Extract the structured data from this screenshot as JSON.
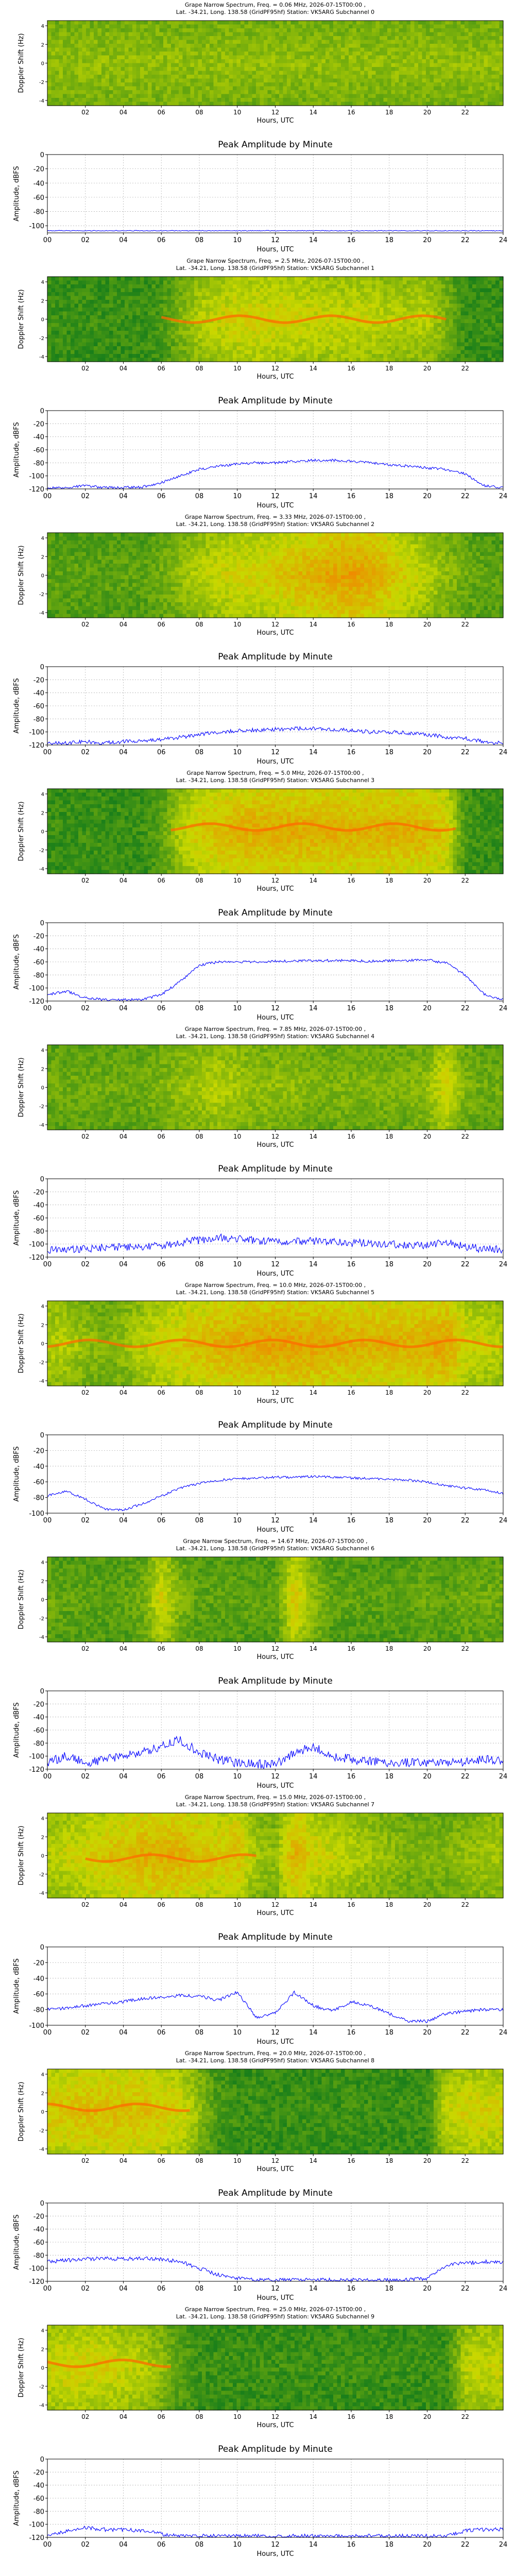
{
  "page": {
    "spectrogram_ylabel": "Doppler Shift (Hz)",
    "spectrogram_yticks": [
      "4",
      "2",
      "0",
      "-2",
      "-4"
    ],
    "spectrogram_xticks": [
      "02",
      "04",
      "06",
      "08",
      "10",
      "12",
      "14",
      "16",
      "18",
      "20",
      "22"
    ],
    "amplitude_title": "Peak Amplitude by Minute",
    "amplitude_ylabel": "Amplitude, dBFS",
    "xlabel": "Hours, UTC",
    "amplitude_xticks": [
      "00",
      "02",
      "04",
      "06",
      "08",
      "10",
      "12",
      "14",
      "16",
      "18",
      "20",
      "22",
      "24"
    ]
  },
  "colors": {
    "line": "#0000ff",
    "spectrogram_low": "#1a7f1a",
    "spectrogram_mid": "#c8d800",
    "spectrogram_high": "#ff6a00",
    "grid": "#b0b0b0"
  },
  "chart_data": [
    {
      "type": "heatmap",
      "subchannel": 0,
      "title_line1": "Grape Narrow Spectrum, Freq. = 0.06 MHz, 2026-07-15T00:00 ,",
      "title_line2": "Lat. -34.21, Long. 138.58 (GridPF95hf) Station: VK5ARG Subchannel 0",
      "xlabel": "Hours, UTC",
      "ylabel": "Doppler Shift (Hz)",
      "intensity_profile": [
        0.35,
        0.35,
        0.35,
        0.35,
        0.35,
        0.35,
        0.35,
        0.35,
        0.35,
        0.35,
        0.35,
        0.35,
        0.35,
        0.35,
        0.35,
        0.35,
        0.35,
        0.35,
        0.35,
        0.35,
        0.35,
        0.35,
        0.35,
        0.35,
        0.35
      ],
      "trace": null
    },
    {
      "type": "line",
      "title": "Peak Amplitude by Minute",
      "xlabel": "Hours, UTC",
      "ylabel": "Amplitude, dBFS",
      "ylim": [
        -110,
        0
      ],
      "yticks": [
        -100,
        -80,
        -60,
        -40,
        -20,
        0
      ],
      "xlim": [
        0,
        24
      ],
      "x": [
        0,
        1,
        2,
        3,
        4,
        5,
        6,
        7,
        8,
        9,
        10,
        11,
        12,
        13,
        14,
        15,
        16,
        17,
        18,
        19,
        20,
        21,
        22,
        23,
        24
      ],
      "y": [
        -107,
        -107,
        -107,
        -107,
        -107,
        -107,
        -107,
        -107,
        -107,
        -107,
        -107,
        -107,
        -107,
        -107,
        -107,
        -107,
        -107,
        -107,
        -107,
        -107,
        -107,
        -107,
        -107,
        -107,
        -107
      ],
      "noise": 0.5
    },
    {
      "type": "heatmap",
      "subchannel": 1,
      "title_line1": "Grape Narrow Spectrum, Freq. = 2.5 MHz, 2026-07-15T00:00 ,",
      "title_line2": "Lat. -34.21, Long. 138.58 (GridPF95hf) Station: VK5ARG Subchannel 1",
      "xlabel": "Hours, UTC",
      "ylabel": "Doppler Shift (Hz)",
      "intensity_profile": [
        0.1,
        0.1,
        0.1,
        0.1,
        0.1,
        0.1,
        0.15,
        0.3,
        0.45,
        0.5,
        0.55,
        0.55,
        0.55,
        0.55,
        0.5,
        0.5,
        0.5,
        0.5,
        0.45,
        0.45,
        0.45,
        0.3,
        0.1,
        0.1,
        0.1
      ],
      "trace": {
        "start": 6,
        "end": 21,
        "offset": 0.0
      }
    },
    {
      "type": "line",
      "title": "Peak Amplitude by Minute",
      "xlabel": "Hours, UTC",
      "ylabel": "Amplitude, dBFS",
      "ylim": [
        -120,
        0
      ],
      "yticks": [
        -120,
        -100,
        -80,
        -60,
        -40,
        -20,
        0
      ],
      "xlim": [
        0,
        24
      ],
      "x": [
        0,
        1,
        2,
        3,
        4,
        5,
        6,
        7,
        8,
        9,
        10,
        11,
        12,
        13,
        14,
        15,
        16,
        17,
        18,
        19,
        20,
        21,
        22,
        23,
        24
      ],
      "y": [
        -119,
        -118,
        -115,
        -118,
        -118,
        -117,
        -110,
        -100,
        -90,
        -85,
        -82,
        -80,
        -80,
        -78,
        -76,
        -76,
        -78,
        -80,
        -83,
        -85,
        -88,
        -90,
        -97,
        -115,
        -118
      ],
      "noise": 2
    },
    {
      "type": "heatmap",
      "subchannel": 2,
      "title_line1": "Grape Narrow Spectrum, Freq. = 3.33 MHz, 2026-07-15T00:00 ,",
      "title_line2": "Lat. -34.21, Long. 138.58 (GridPF95hf) Station: VK5ARG Subchannel 2",
      "xlabel": "Hours, UTC",
      "ylabel": "Doppler Shift (Hz)",
      "intensity_profile": [
        0.2,
        0.2,
        0.2,
        0.2,
        0.2,
        0.2,
        0.25,
        0.35,
        0.45,
        0.5,
        0.55,
        0.55,
        0.6,
        0.65,
        0.7,
        0.75,
        0.78,
        0.75,
        0.65,
        0.55,
        0.45,
        0.35,
        0.25,
        0.2,
        0.2
      ],
      "trace": null
    },
    {
      "type": "line",
      "title": "Peak Amplitude by Minute",
      "xlabel": "Hours, UTC",
      "ylabel": "Amplitude, dBFS",
      "ylim": [
        -120,
        0
      ],
      "yticks": [
        -120,
        -100,
        -80,
        -60,
        -40,
        -20,
        0
      ],
      "xlim": [
        0,
        24
      ],
      "x": [
        0,
        1,
        2,
        3,
        4,
        5,
        6,
        7,
        8,
        9,
        10,
        11,
        12,
        13,
        14,
        15,
        16,
        17,
        18,
        19,
        20,
        21,
        22,
        23,
        24
      ],
      "y": [
        -117,
        -117,
        -115,
        -117,
        -115,
        -114,
        -112,
        -108,
        -104,
        -100,
        -98,
        -97,
        -96,
        -95,
        -95,
        -96,
        -98,
        -100,
        -100,
        -102,
        -104,
        -108,
        -110,
        -115,
        -117
      ],
      "noise": 3
    },
    {
      "type": "heatmap",
      "subchannel": 3,
      "title_line1": "Grape Narrow Spectrum, Freq. = 5.0 MHz, 2026-07-15T00:00 ,",
      "title_line2": "Lat. -34.21, Long. 138.58 (GridPF95hf) Station: VK5ARG Subchannel 3",
      "xlabel": "Hours, UTC",
      "ylabel": "Doppler Shift (Hz)",
      "intensity_profile": [
        0.1,
        0.1,
        0.1,
        0.1,
        0.1,
        0.1,
        0.2,
        0.45,
        0.6,
        0.65,
        0.7,
        0.72,
        0.72,
        0.72,
        0.72,
        0.7,
        0.7,
        0.7,
        0.7,
        0.7,
        0.68,
        0.6,
        0.15,
        0.1,
        0.1
      ],
      "trace": {
        "start": 6.5,
        "end": 21.5,
        "offset": 0.5
      }
    },
    {
      "type": "line",
      "title": "Peak Amplitude by Minute",
      "xlabel": "Hours, UTC",
      "ylabel": "Amplitude, dBFS",
      "ylim": [
        -120,
        0
      ],
      "yticks": [
        -120,
        -100,
        -80,
        -60,
        -40,
        -20,
        0
      ],
      "xlim": [
        0,
        24
      ],
      "x": [
        0,
        1,
        2,
        3,
        4,
        5,
        6,
        7,
        8,
        9,
        10,
        11,
        12,
        13,
        14,
        15,
        16,
        17,
        18,
        19,
        20,
        21,
        22,
        23,
        24
      ],
      "y": [
        -110,
        -105,
        -115,
        -118,
        -118,
        -118,
        -110,
        -90,
        -65,
        -60,
        -60,
        -60,
        -59,
        -59,
        -58,
        -58,
        -58,
        -59,
        -58,
        -58,
        -57,
        -62,
        -80,
        -110,
        -118
      ],
      "noise": 2
    },
    {
      "type": "heatmap",
      "subchannel": 4,
      "title_line1": "Grape Narrow Spectrum, Freq. = 7.85 MHz, 2026-07-15T00:00 ,",
      "title_line2": "Lat. -34.21, Long. 138.58 (GridPF95hf) Station: VK5ARG Subchannel 4",
      "xlabel": "Hours, UTC",
      "ylabel": "Doppler Shift (Hz)",
      "intensity_profile": [
        0.25,
        0.25,
        0.25,
        0.25,
        0.25,
        0.25,
        0.3,
        0.35,
        0.4,
        0.45,
        0.4,
        0.35,
        0.35,
        0.35,
        0.3,
        0.3,
        0.3,
        0.3,
        0.3,
        0.3,
        0.35,
        0.55,
        0.3,
        0.25,
        0.25
      ],
      "trace": null
    },
    {
      "type": "line",
      "title": "Peak Amplitude by Minute",
      "xlabel": "Hours, UTC",
      "ylabel": "Amplitude, dBFS",
      "ylim": [
        -120,
        0
      ],
      "yticks": [
        -120,
        -100,
        -80,
        -60,
        -40,
        -20,
        0
      ],
      "xlim": [
        0,
        24
      ],
      "x": [
        0,
        1,
        2,
        3,
        4,
        5,
        6,
        7,
        8,
        9,
        10,
        11,
        12,
        13,
        14,
        15,
        16,
        17,
        18,
        19,
        20,
        21,
        22,
        23,
        24
      ],
      "y": [
        -110,
        -108,
        -108,
        -105,
        -105,
        -104,
        -102,
        -98,
        -94,
        -90,
        -92,
        -95,
        -96,
        -95,
        -96,
        -97,
        -98,
        -98,
        -100,
        -102,
        -102,
        -98,
        -104,
        -108,
        -108
      ],
      "noise": 6
    },
    {
      "type": "heatmap",
      "subchannel": 5,
      "title_line1": "Grape Narrow Spectrum, Freq. = 10.0 MHz, 2026-07-15T00:00 ,",
      "title_line2": "Lat. -34.21, Long. 138.58 (GridPF95hf) Station: VK5ARG Subchannel 5",
      "xlabel": "Hours, UTC",
      "ylabel": "Doppler Shift (Hz)",
      "intensity_profile": [
        0.45,
        0.45,
        0.35,
        0.3,
        0.35,
        0.45,
        0.55,
        0.6,
        0.65,
        0.7,
        0.72,
        0.75,
        0.75,
        0.75,
        0.75,
        0.72,
        0.7,
        0.7,
        0.7,
        0.7,
        0.72,
        0.75,
        0.55,
        0.5,
        0.45
      ],
      "trace": {
        "start": 0,
        "end": 24,
        "offset": 0.0
      }
    },
    {
      "type": "line",
      "title": "Peak Amplitude by Minute",
      "xlabel": "Hours, UTC",
      "ylabel": "Amplitude, dBFS",
      "ylim": [
        -100,
        0
      ],
      "yticks": [
        -100,
        -80,
        -60,
        -40,
        -20,
        0
      ],
      "xlim": [
        0,
        24
      ],
      "x": [
        0,
        1,
        2,
        3,
        4,
        5,
        6,
        7,
        8,
        9,
        10,
        11,
        12,
        13,
        14,
        15,
        16,
        17,
        18,
        19,
        20,
        21,
        22,
        23,
        24
      ],
      "y": [
        -78,
        -72,
        -82,
        -95,
        -96,
        -88,
        -78,
        -68,
        -62,
        -58,
        -56,
        -55,
        -54,
        -54,
        -53,
        -54,
        -55,
        -56,
        -57,
        -58,
        -60,
        -65,
        -68,
        -70,
        -75
      ],
      "noise": 1.5
    },
    {
      "type": "heatmap",
      "subchannel": 6,
      "title_line1": "Grape Narrow Spectrum, Freq. = 14.67 MHz, 2026-07-15T00:00 ,",
      "title_line2": "Lat. -34.21, Long. 138.58 (GridPF95hf) Station: VK5ARG Subchannel 6",
      "xlabel": "Hours, UTC",
      "ylabel": "Doppler Shift (Hz)",
      "intensity_profile": [
        0.25,
        0.2,
        0.2,
        0.2,
        0.2,
        0.25,
        0.55,
        0.3,
        0.2,
        0.2,
        0.2,
        0.2,
        0.2,
        0.6,
        0.35,
        0.2,
        0.2,
        0.2,
        0.2,
        0.2,
        0.25,
        0.2,
        0.25,
        0.25,
        0.25
      ],
      "trace": null
    },
    {
      "type": "line",
      "title": "Peak Amplitude by Minute",
      "xlabel": "Hours, UTC",
      "ylabel": "Amplitude, dBFS",
      "ylim": [
        -120,
        0
      ],
      "yticks": [
        -120,
        -100,
        -80,
        -60,
        -40,
        -20,
        0
      ],
      "xlim": [
        0,
        24
      ],
      "x": [
        0,
        1,
        2,
        3,
        4,
        5,
        6,
        7,
        8,
        9,
        10,
        11,
        12,
        13,
        14,
        15,
        16,
        17,
        18,
        19,
        20,
        21,
        22,
        23,
        24
      ],
      "y": [
        -110,
        -100,
        -110,
        -105,
        -100,
        -95,
        -85,
        -75,
        -95,
        -105,
        -110,
        -112,
        -113,
        -95,
        -85,
        -100,
        -105,
        -108,
        -110,
        -110,
        -110,
        -112,
        -108,
        -105,
        -108
      ],
      "noise": 7
    },
    {
      "type": "heatmap",
      "subchannel": 7,
      "title_line1": "Grape Narrow Spectrum, Freq. = 15.0 MHz, 2026-07-15T00:00 ,",
      "title_line2": "Lat. -34.21, Long. 138.58 (GridPF95hf) Station: VK5ARG Subchannel 7",
      "xlabel": "Hours, UTC",
      "ylabel": "Doppler Shift (Hz)",
      "intensity_profile": [
        0.45,
        0.5,
        0.55,
        0.6,
        0.65,
        0.7,
        0.7,
        0.7,
        0.65,
        0.6,
        0.65,
        0.4,
        0.35,
        0.7,
        0.55,
        0.5,
        0.45,
        0.4,
        0.35,
        0.3,
        0.3,
        0.3,
        0.35,
        0.4,
        0.4
      ],
      "trace": {
        "start": 2,
        "end": 11,
        "offset": -0.3
      }
    },
    {
      "type": "line",
      "title": "Peak Amplitude by Minute",
      "xlabel": "Hours, UTC",
      "ylabel": "Amplitude, dBFS",
      "ylim": [
        -100,
        0
      ],
      "yticks": [
        -100,
        -80,
        -60,
        -40,
        -20,
        0
      ],
      "xlim": [
        0,
        24
      ],
      "x": [
        0,
        1,
        2,
        3,
        4,
        5,
        6,
        7,
        8,
        9,
        10,
        11,
        12,
        13,
        14,
        15,
        16,
        17,
        18,
        19,
        20,
        21,
        22,
        23,
        24
      ],
      "y": [
        -80,
        -78,
        -75,
        -72,
        -70,
        -66,
        -64,
        -62,
        -63,
        -68,
        -58,
        -90,
        -85,
        -58,
        -75,
        -82,
        -70,
        -75,
        -85,
        -95,
        -95,
        -85,
        -82,
        -80,
        -80
      ],
      "noise": 2
    },
    {
      "type": "heatmap",
      "subchannel": 8,
      "title_line1": "Grape Narrow Spectrum, Freq. = 20.0 MHz, 2026-07-15T00:00 ,",
      "title_line2": "Lat. -34.21, Long. 138.58 (GridPF95hf) Station: VK5ARG Subchannel 8",
      "xlabel": "Hours, UTC",
      "ylabel": "Doppler Shift (Hz)",
      "intensity_profile": [
        0.6,
        0.62,
        0.65,
        0.65,
        0.65,
        0.65,
        0.6,
        0.55,
        0.35,
        0.15,
        0.1,
        0.1,
        0.1,
        0.1,
        0.1,
        0.1,
        0.1,
        0.1,
        0.1,
        0.1,
        0.1,
        0.5,
        0.55,
        0.55,
        0.55
      ],
      "trace": {
        "start": 0,
        "end": 7.5,
        "offset": 0.5
      }
    },
    {
      "type": "line",
      "title": "Peak Amplitude by Minute",
      "xlabel": "Hours, UTC",
      "ylabel": "Amplitude, dBFS",
      "ylim": [
        -120,
        0
      ],
      "yticks": [
        -120,
        -100,
        -80,
        -60,
        -40,
        -20,
        0
      ],
      "xlim": [
        0,
        24
      ],
      "x": [
        0,
        1,
        2,
        3,
        4,
        5,
        6,
        7,
        8,
        9,
        10,
        11,
        12,
        13,
        14,
        15,
        16,
        17,
        18,
        19,
        20,
        21,
        22,
        23,
        24
      ],
      "y": [
        -90,
        -88,
        -86,
        -85,
        -86,
        -85,
        -86,
        -90,
        -100,
        -110,
        -115,
        -118,
        -118,
        -118,
        -118,
        -118,
        -118,
        -118,
        -118,
        -118,
        -115,
        -95,
        -92,
        -90,
        -90
      ],
      "noise": 3
    },
    {
      "type": "heatmap",
      "subchannel": 9,
      "title_line1": "Grape Narrow Spectrum, Freq. = 25.0 MHz, 2026-07-15T00:00 ,",
      "title_line2": "Lat. -34.21, Long. 138.58 (GridPF95hf) Station: VK5ARG Subchannel 9",
      "xlabel": "Hours, UTC",
      "ylabel": "Doppler Shift (Hz)",
      "intensity_profile": [
        0.5,
        0.55,
        0.55,
        0.55,
        0.5,
        0.45,
        0.35,
        0.2,
        0.1,
        0.1,
        0.1,
        0.1,
        0.1,
        0.1,
        0.1,
        0.1,
        0.1,
        0.1,
        0.1,
        0.1,
        0.1,
        0.1,
        0.45,
        0.5,
        0.5
      ],
      "trace": {
        "start": 0,
        "end": 6.5,
        "offset": 0.5
      }
    },
    {
      "type": "line",
      "title": "Peak Amplitude by Minute",
      "xlabel": "Hours, UTC",
      "ylabel": "Amplitude, dBFS",
      "ylim": [
        -120,
        0
      ],
      "yticks": [
        -120,
        -100,
        -80,
        -60,
        -40,
        -20,
        0
      ],
      "xlim": [
        0,
        24
      ],
      "x": [
        0,
        1,
        2,
        3,
        4,
        5,
        6,
        7,
        8,
        9,
        10,
        11,
        12,
        13,
        14,
        15,
        16,
        17,
        18,
        19,
        20,
        21,
        22,
        23,
        24
      ],
      "y": [
        -118,
        -110,
        -105,
        -108,
        -108,
        -110,
        -115,
        -118,
        -118,
        -118,
        -118,
        -118,
        -118,
        -118,
        -118,
        -118,
        -118,
        -118,
        -118,
        -118,
        -118,
        -118,
        -110,
        -108,
        -108
      ],
      "noise": 3
    }
  ]
}
